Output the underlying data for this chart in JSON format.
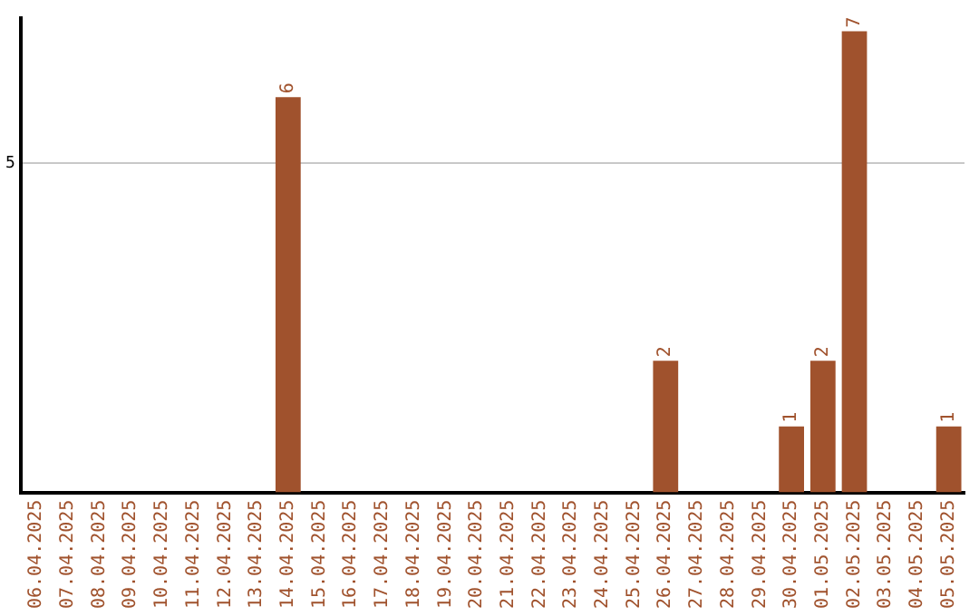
{
  "chart_data": {
    "type": "bar",
    "categories": [
      "06.04.2025",
      "07.04.2025",
      "08.04.2025",
      "09.04.2025",
      "10.04.2025",
      "11.04.2025",
      "12.04.2025",
      "13.04.2025",
      "14.04.2025",
      "15.04.2025",
      "16.04.2025",
      "17.04.2025",
      "18.04.2025",
      "19.04.2025",
      "20.04.2025",
      "21.04.2025",
      "22.04.2025",
      "23.04.2025",
      "24.04.2025",
      "25.04.2025",
      "26.04.2025",
      "27.04.2025",
      "28.04.2025",
      "29.04.2025",
      "30.04.2025",
      "01.05.2025",
      "02.05.2025",
      "03.05.2025",
      "04.05.2025",
      "05.05.2025"
    ],
    "values": [
      0,
      0,
      0,
      0,
      0,
      0,
      0,
      0,
      6,
      0,
      0,
      0,
      0,
      0,
      0,
      0,
      0,
      0,
      0,
      0,
      2,
      0,
      0,
      0,
      1,
      2,
      7,
      0,
      0,
      1
    ],
    "value_labels": [
      null,
      null,
      null,
      null,
      null,
      null,
      null,
      null,
      "6",
      null,
      null,
      null,
      null,
      null,
      null,
      null,
      null,
      null,
      null,
      null,
      "2",
      null,
      null,
      null,
      "1",
      "2",
      "7",
      null,
      null,
      "1"
    ],
    "color": "#a0522d",
    "ylim": [
      0,
      7.2
    ],
    "yticks": [
      5
    ],
    "grid": "y",
    "legend": false
  }
}
